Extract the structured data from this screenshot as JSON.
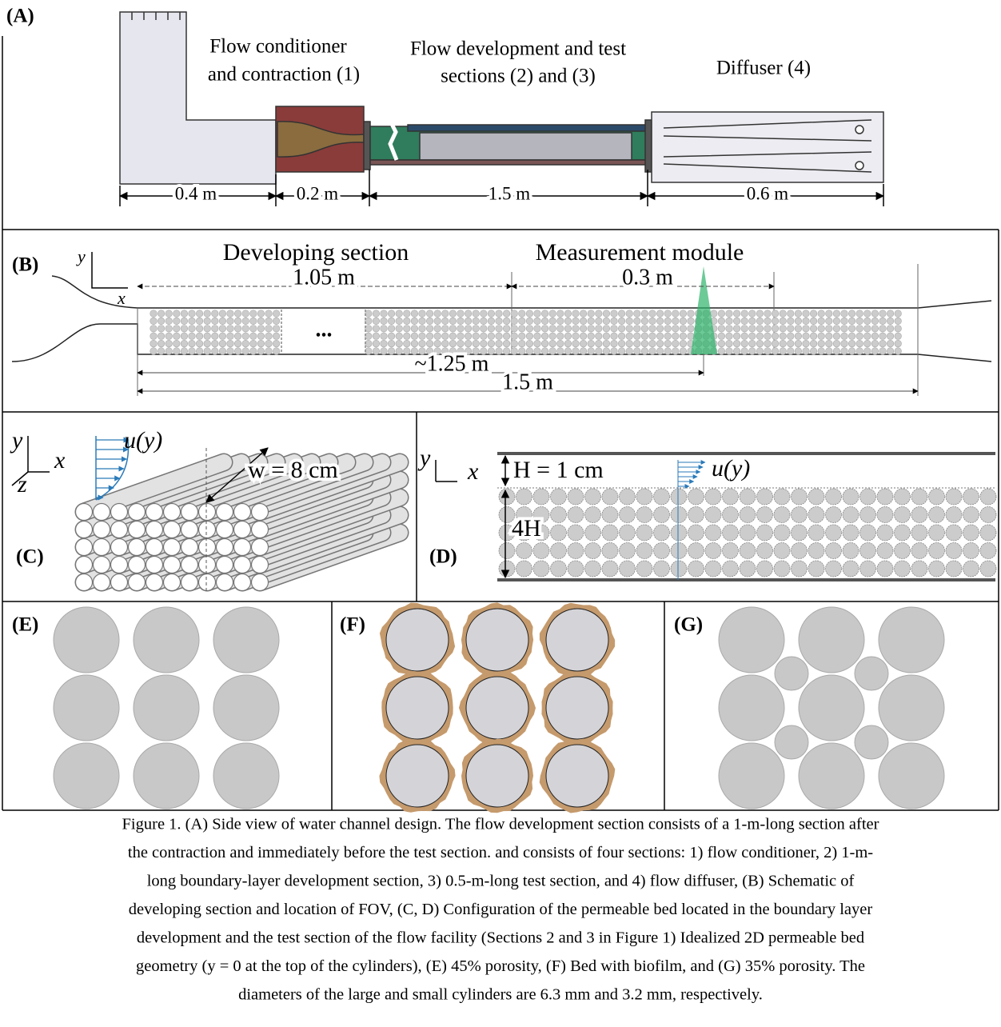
{
  "panel_a": {
    "label": "(A)",
    "titles": [
      "Flow conditioner",
      "and contraction (1)",
      "Flow development and test",
      "sections (2) and (3)",
      "Diffuser (4)"
    ],
    "dimensions": [
      "0.4 m",
      "0.2 m",
      "1.5 m",
      "0.6 m"
    ]
  },
  "panel_b": {
    "label": "(B)",
    "axis_y": "y",
    "axis_x": "x",
    "developing_section": "Developing section",
    "measurement_module": "Measurement module",
    "dimensions": [
      "1.05 m",
      "0.3 m",
      "~1.25 m",
      "1.5 m"
    ],
    "ellipsis": "..."
  },
  "panel_c": {
    "label": "(C)",
    "axis_y": "y",
    "axis_x": "x",
    "axis_z": "z",
    "profile": "u(y)",
    "width": "w = 8 cm"
  },
  "panel_d": {
    "label": "(D)",
    "axis_y": "y",
    "axis_x": "x",
    "height": "H = 1 cm",
    "profile": "u(y)",
    "depth": "4H"
  },
  "panel_e": {
    "label": "(E)"
  },
  "panel_f": {
    "label": "(F)"
  },
  "panel_g": {
    "label": "(G)"
  },
  "caption": [
    "Figure 1. (A) Side view of water channel design. The flow development section consists of a 1-m-long section after",
    "the contraction and immediately before the test section. and consists of four sections: 1) flow conditioner, 2) 1-m-",
    "long boundary-layer development section, 3) 0.5-m-long test section, and 4) flow diffuser, (B) Schematic of",
    "developing section and location of FOV, (C, D) Configuration of the permeable bed located in the boundary layer",
    "development and the test section of the flow facility (Sections 2 and 3 in Figure 1) Idealized 2D permeable bed",
    "geometry (y = 0 at the top of the cylinders), (E) 45% porosity, (F) Bed with biofilm, and (G) 35% porosity. The",
    "diameters of the large and small cylinders are 6.3 mm and 3.2 mm, respectively."
  ]
}
